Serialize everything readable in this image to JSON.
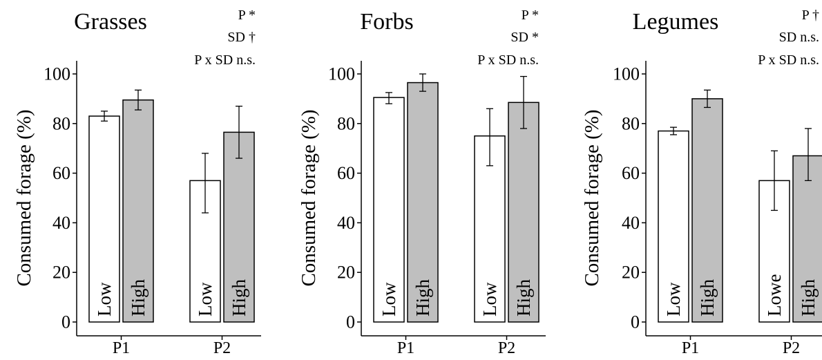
{
  "chart_data": [
    {
      "type": "bar",
      "title": "Grasses",
      "ylabel": "Consumed forage (%)",
      "xlabel": "",
      "ylim": [
        0,
        100
      ],
      "yticks": [
        0,
        20,
        40,
        60,
        80,
        100
      ],
      "categories": [
        "P1",
        "P2"
      ],
      "stats": [
        "P *",
        "SD †",
        "P x SD n.s."
      ],
      "series": [
        {
          "name": "Low",
          "color": "#ffffff",
          "values": [
            83,
            57
          ],
          "err_low": [
            81,
            44
          ],
          "err_high": [
            85,
            68
          ],
          "bar_labels": [
            "Low",
            "Low"
          ]
        },
        {
          "name": "High",
          "color": "#bfbfbf",
          "values": [
            89.5,
            76.5
          ],
          "err_low": [
            85.5,
            66
          ],
          "err_high": [
            93.5,
            87
          ],
          "bar_labels": [
            "High",
            "High"
          ]
        }
      ]
    },
    {
      "type": "bar",
      "title": "Forbs",
      "ylabel": "Consumed forage (%)",
      "xlabel": "",
      "ylim": [
        0,
        100
      ],
      "yticks": [
        0,
        20,
        40,
        60,
        80,
        100
      ],
      "categories": [
        "P1",
        "P2"
      ],
      "stats": [
        "P *",
        "SD *",
        "P x SD n.s."
      ],
      "series": [
        {
          "name": "Low",
          "color": "#ffffff",
          "values": [
            90.5,
            75
          ],
          "err_low": [
            88,
            63
          ],
          "err_high": [
            92.5,
            86
          ],
          "bar_labels": [
            "Low",
            "Low"
          ]
        },
        {
          "name": "High",
          "color": "#bfbfbf",
          "values": [
            96.5,
            88.5
          ],
          "err_low": [
            93,
            78
          ],
          "err_high": [
            100,
            99
          ],
          "bar_labels": [
            "High",
            "High"
          ]
        }
      ]
    },
    {
      "type": "bar",
      "title": "Legumes",
      "ylabel": "Consumed forage (%)",
      "xlabel": "",
      "ylim": [
        0,
        100
      ],
      "yticks": [
        0,
        20,
        40,
        60,
        80,
        100
      ],
      "categories": [
        "P1",
        "P2"
      ],
      "stats": [
        "P †",
        "SD n.s.",
        "P x SD n.s."
      ],
      "series": [
        {
          "name": "Low",
          "color": "#ffffff",
          "values": [
            77,
            57
          ],
          "err_low": [
            75.5,
            45
          ],
          "err_high": [
            78.5,
            69
          ],
          "bar_labels": [
            "Low",
            "Lowe"
          ]
        },
        {
          "name": "High",
          "color": "#bfbfbf",
          "values": [
            90,
            67
          ],
          "err_low": [
            86.5,
            57
          ],
          "err_high": [
            93.5,
            78
          ],
          "bar_labels": [
            "High",
            "High"
          ]
        }
      ]
    }
  ]
}
